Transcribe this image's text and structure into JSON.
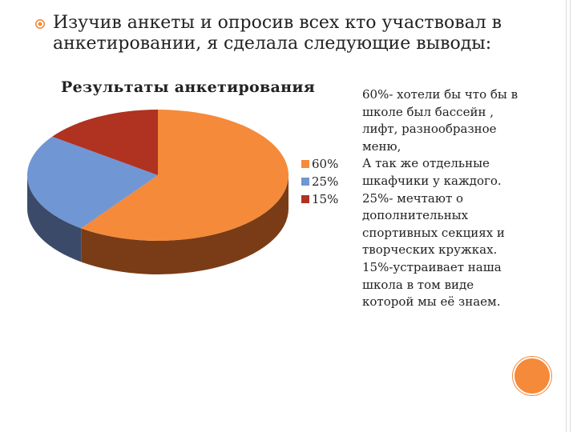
{
  "slide": {
    "bullet_text": "Изучив анкеты и опросив всех кто  участвовал в анкетировании, я сделала следующие выводы:",
    "notes": [
      "60%- хотели бы что бы в",
      "школе был бассейн ,",
      "лифт, разнообразное",
      "меню,",
      "А так же отдельные",
      "шкафчики у каждого.",
      "25%- мечтают о",
      "дополнительных",
      "спортивных секциях и",
      "творческих кружках.",
      "15%-устраивает наша",
      "школа в том виде",
      "которой мы её знаем."
    ],
    "accent_color": "#f58a3a"
  },
  "chart_data": {
    "type": "pie",
    "title": "Результаты анкетирования",
    "categories": [
      "60%",
      "25%",
      "15%"
    ],
    "values": [
      60,
      25,
      15
    ],
    "colors": [
      "#f58a3a",
      "#7096d4",
      "#b03220"
    ],
    "side_colors": [
      "#7a3c16",
      "#3c4a6a",
      "#6a2010"
    ],
    "legend": "right",
    "three_d": true
  }
}
